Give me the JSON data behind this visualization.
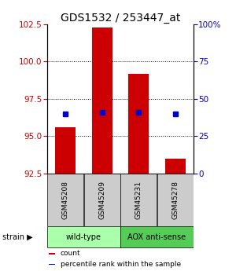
{
  "title": "GDS1532 / 253447_at",
  "samples": [
    "GSM45208",
    "GSM45209",
    "GSM45231",
    "GSM45278"
  ],
  "bar_values": [
    95.6,
    102.3,
    99.2,
    93.5
  ],
  "blue_marker_values": [
    96.5,
    96.6,
    96.6,
    96.5
  ],
  "ylim_left": [
    92.5,
    102.5
  ],
  "yticks_left": [
    92.5,
    95.0,
    97.5,
    100.0,
    102.5
  ],
  "yticks_right": [
    0,
    25,
    50,
    75,
    100
  ],
  "bar_color": "#cc0000",
  "blue_marker_color": "#0000cc",
  "bar_width": 0.55,
  "strain_labels": [
    "wild-type",
    "AOX anti-sense"
  ],
  "strain_bg_colors": [
    "#aaffaa",
    "#55cc55"
  ],
  "sample_box_color": "#cccccc",
  "legend_items": [
    "count",
    "percentile rank within the sample"
  ],
  "legend_colors": [
    "#cc0000",
    "#0000cc"
  ],
  "title_fontsize": 10,
  "tick_fontsize": 7.5
}
